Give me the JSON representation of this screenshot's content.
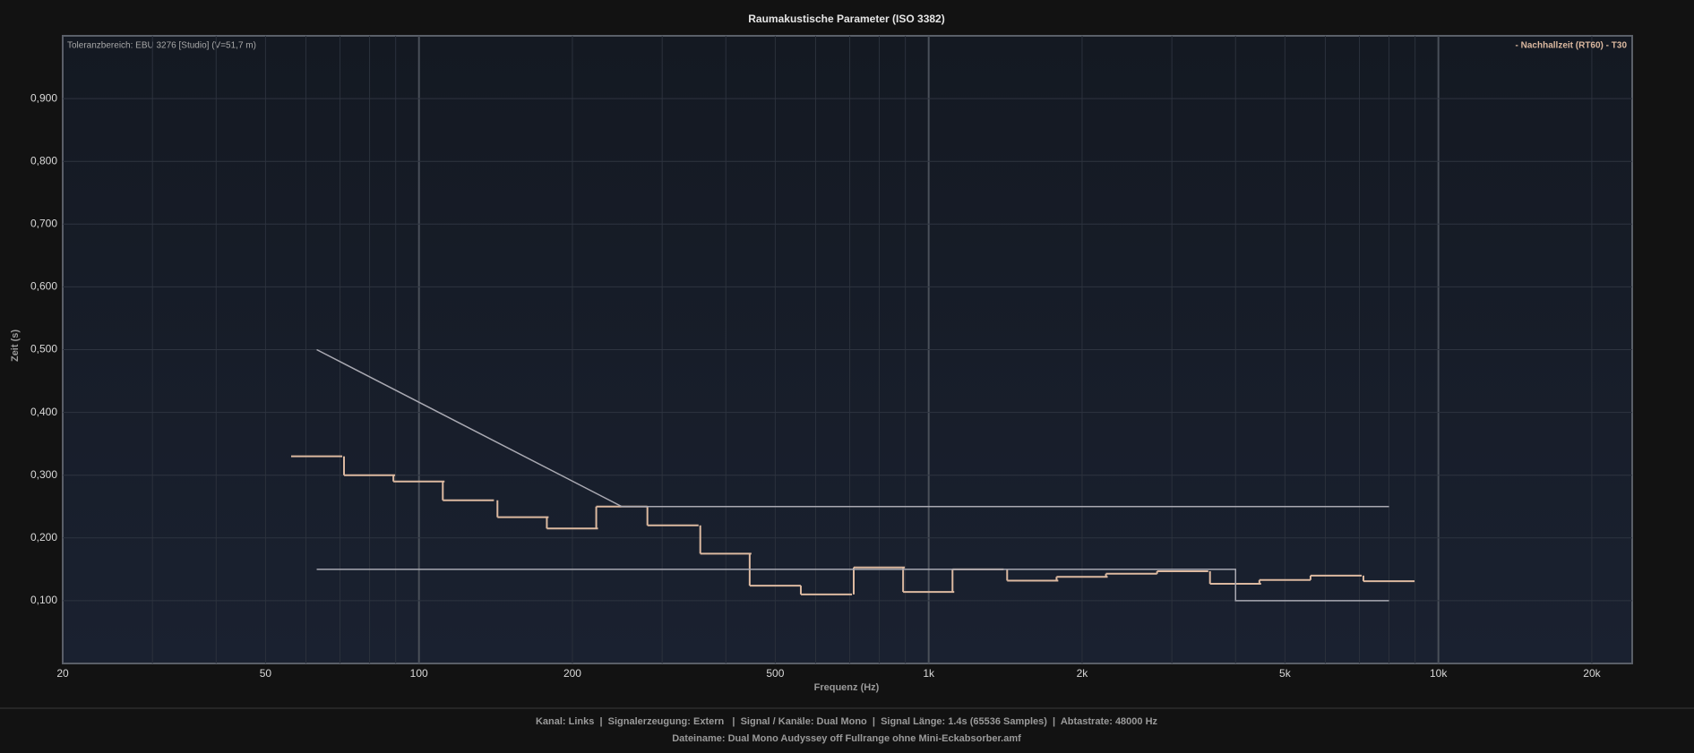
{
  "chart_data": {
    "type": "line",
    "title": "Raumakustische Parameter (ISO 3382)",
    "x_label": "Frequenz (Hz)",
    "y_label": "Zeit (s)",
    "annotation": "Toleranzbereich: EBU 3276 [Studio] (V=51,7 m)",
    "footer": [
      "Kanal: Links  |  Signalerzeugung: Extern   |  Signal / Kanäle: Dual Mono  |  Signal Länge: 1.4s (65536 Samples)  |  Abtastrate: 48000 Hz",
      "Dateiname: Dual Mono Audyssey off Fullrange ohne Mini-Eckabsorber.amf"
    ],
    "log_x": true,
    "grid": true,
    "minor_grid": true,
    "legend": "top-right",
    "xlim": [
      20,
      24000
    ],
    "ylim": [
      0,
      1
    ],
    "xticks": [
      20,
      50,
      100,
      200,
      500,
      {
        "value": 1000,
        "label": "1k"
      },
      {
        "value": 2000,
        "label": "2k"
      },
      {
        "value": 5000,
        "label": "5k"
      },
      {
        "value": 10000,
        "label": "10k"
      },
      {
        "value": 20000,
        "label": "20k"
      }
    ],
    "yticks": [
      {
        "value": 0.1,
        "label": "0,100"
      },
      {
        "value": 0.2,
        "label": "0,200"
      },
      {
        "value": 0.3,
        "label": "0,300"
      },
      {
        "value": 0.4,
        "label": "0,400"
      },
      {
        "value": 0.5,
        "label": "0,500"
      },
      {
        "value": 0.6,
        "label": "0,600"
      },
      {
        "value": 0.7,
        "label": "0,700"
      },
      {
        "value": 0.8,
        "label": "0,800"
      },
      {
        "value": 0.9,
        "label": "0,900"
      }
    ],
    "series": [
      {
        "name": "- Nachhallzeit (RT60) - T30",
        "color": "#dcb9a0",
        "style": "step",
        "x": [
          63,
          80,
          100,
          125,
          160,
          200,
          250,
          315,
          400,
          500,
          630,
          800,
          1000,
          1250,
          1600,
          2000,
          2500,
          3150,
          4000,
          5000,
          6300,
          8000
        ],
        "values": [
          0.33,
          0.3,
          0.29,
          0.26,
          0.233,
          0.215,
          0.25,
          0.22,
          0.175,
          0.124,
          0.11,
          0.153,
          0.114,
          0.15,
          0.132,
          0.138,
          0.143,
          0.147,
          0.127,
          0.133,
          0.14,
          0.131
        ]
      },
      {
        "color": "#a9a9b2",
        "style": "line",
        "x": [
          63,
          250,
          8000
        ],
        "values": [
          0.5,
          0.25,
          0.25
        ]
      },
      {
        "color": "#a9a9b2",
        "style": "line",
        "x": [
          63,
          4000,
          4000,
          8000
        ],
        "values": [
          0.15,
          0.15,
          0.1,
          0.1
        ]
      }
    ]
  }
}
